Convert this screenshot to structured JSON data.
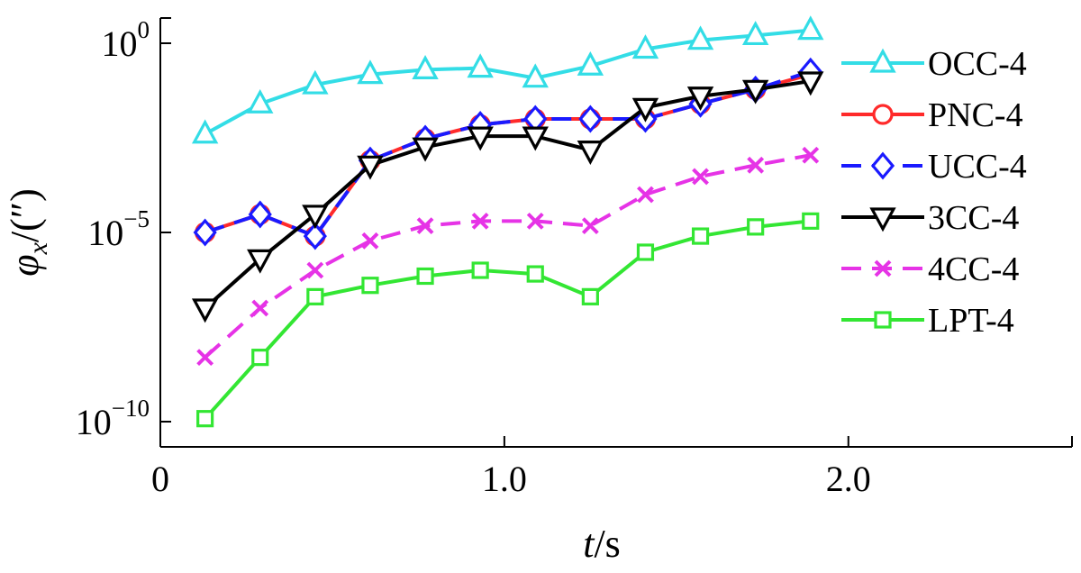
{
  "chart_data": {
    "type": "line",
    "y_scale": "log",
    "xlim": [
      0,
      2.65
    ],
    "ylim": [
      1e-10,
      1.0
    ],
    "x_ticks": [
      {
        "value": 0,
        "label": "0"
      },
      {
        "value": 1.0,
        "label": "1.0"
      },
      {
        "value": 2.0,
        "label": "2.0"
      }
    ],
    "y_ticks": [
      {
        "value": 1.0,
        "base": "10",
        "exp": "0"
      },
      {
        "value": 1e-05,
        "base": "10",
        "exp": "−5"
      },
      {
        "value": 1e-10,
        "base": "10",
        "exp": "−10"
      }
    ],
    "xlabel": {
      "var": "t",
      "sep": "/",
      "unit": "s"
    },
    "ylabel": {
      "var": "φ",
      "sub": "x",
      "sep": "/(″)"
    },
    "grid": false,
    "legend_position": "right",
    "x": [
      0.13,
      0.29,
      0.45,
      0.61,
      0.77,
      0.93,
      1.09,
      1.25,
      1.41,
      1.57,
      1.73,
      1.89
    ],
    "series": [
      {
        "name": "OCC-4",
        "color": "#33dde6",
        "marker": "triangle-up",
        "dash": "solid",
        "values": [
          0.004,
          0.025,
          0.08,
          0.15,
          0.2,
          0.22,
          0.12,
          0.25,
          0.7,
          1.2,
          1.6,
          2.2
        ]
      },
      {
        "name": "PNC-4",
        "color": "#ff2a2a",
        "marker": "circle",
        "dash": "solid",
        "values": [
          1e-05,
          3e-05,
          8e-06,
          0.0008,
          0.003,
          0.007,
          0.01,
          0.01,
          0.01,
          0.025,
          0.06,
          0.15
        ]
      },
      {
        "name": "UCC-4",
        "color": "#1a1aff",
        "marker": "diamond",
        "dash": "dashed",
        "values": [
          1e-05,
          3e-05,
          8e-06,
          0.0008,
          0.003,
          0.007,
          0.01,
          0.01,
          0.01,
          0.025,
          0.06,
          0.18
        ]
      },
      {
        "name": "3CC-4",
        "color": "#000000",
        "marker": "triangle-down",
        "dash": "solid",
        "values": [
          1e-07,
          2e-06,
          3e-05,
          0.0006,
          0.0018,
          0.0035,
          0.0035,
          0.0015,
          0.02,
          0.04,
          0.06,
          0.1
        ]
      },
      {
        "name": "4CC-4",
        "color": "#e633e6",
        "marker": "x",
        "dash": "dashed",
        "values": [
          5e-09,
          1e-07,
          1e-06,
          6e-06,
          1.5e-05,
          2e-05,
          2e-05,
          1.5e-05,
          0.0001,
          0.0003,
          0.0006,
          0.0011
        ]
      },
      {
        "name": "LPT-4",
        "color": "#33e633",
        "marker": "square",
        "dash": "solid",
        "values": [
          1.2e-10,
          5e-09,
          2e-07,
          4e-07,
          7e-07,
          1e-06,
          8e-07,
          2e-07,
          3e-06,
          8e-06,
          1.4e-05,
          2e-05
        ]
      }
    ]
  }
}
